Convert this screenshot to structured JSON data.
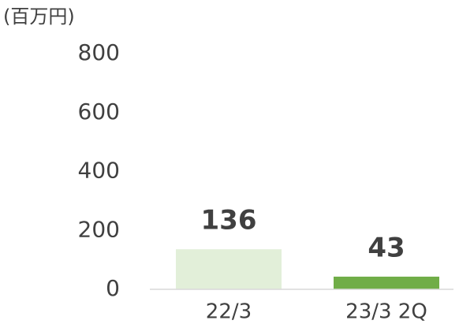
{
  "chart_data": {
    "type": "bar",
    "y_label": "(百万円)",
    "categories": [
      "22/3",
      "23/3 2Q"
    ],
    "values": [
      136,
      43
    ],
    "colors": [
      "#e2efd9",
      "#70ad47"
    ],
    "ylim": [
      0,
      800
    ],
    "yticks": [
      0,
      200,
      400,
      600,
      800
    ],
    "grid": false
  }
}
